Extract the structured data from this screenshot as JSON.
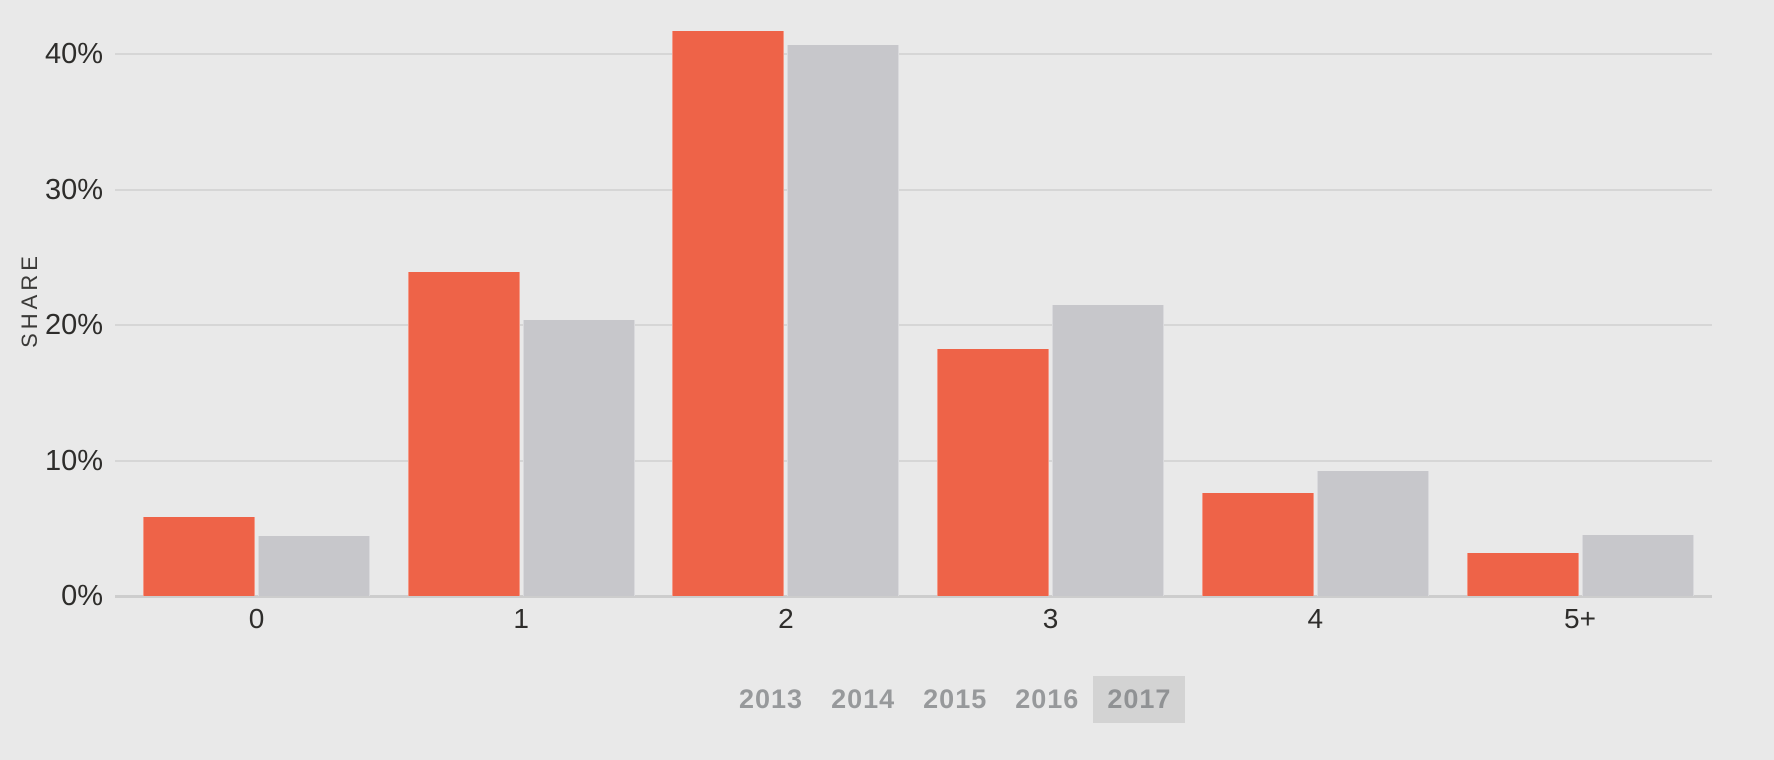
{
  "chart_data": {
    "type": "bar",
    "title": "",
    "xlabel": "",
    "ylabel": "SHARE",
    "categories": [
      "0",
      "1",
      "2",
      "3",
      "4",
      "5+"
    ],
    "series": [
      {
        "name": "series-orange",
        "color": "#ee6348",
        "values": [
          5.8,
          23.9,
          41.7,
          18.2,
          7.6,
          3.2
        ]
      },
      {
        "name": "series-gray",
        "color": "#c7c7cb",
        "values": [
          4.4,
          20.4,
          40.7,
          21.5,
          9.2,
          4.5
        ]
      }
    ],
    "ylim": [
      0,
      44
    ],
    "yticks": [
      {
        "value": 0,
        "label": "0%"
      },
      {
        "value": 10,
        "label": "10%"
      },
      {
        "value": 20,
        "label": "20%"
      },
      {
        "value": 30,
        "label": "30%"
      },
      {
        "value": 40,
        "label": "40%"
      }
    ],
    "grid": true,
    "legend_position": "bottom"
  },
  "year_selector": {
    "items": [
      {
        "label": "2013",
        "selected": false
      },
      {
        "label": "2014",
        "selected": false
      },
      {
        "label": "2015",
        "selected": false
      },
      {
        "label": "2016",
        "selected": false
      },
      {
        "label": "2017",
        "selected": true
      }
    ]
  },
  "colors": {
    "background": "#e9e9e9",
    "gridline": "#d6d6d6",
    "baseline": "#cdcdcd",
    "tick_text": "#2e2d2b",
    "legend_text": "#97999b",
    "legend_selected_bg": "#d3d3d3",
    "bar_orange": "#ee6348",
    "bar_gray": "#c7c7cb"
  }
}
